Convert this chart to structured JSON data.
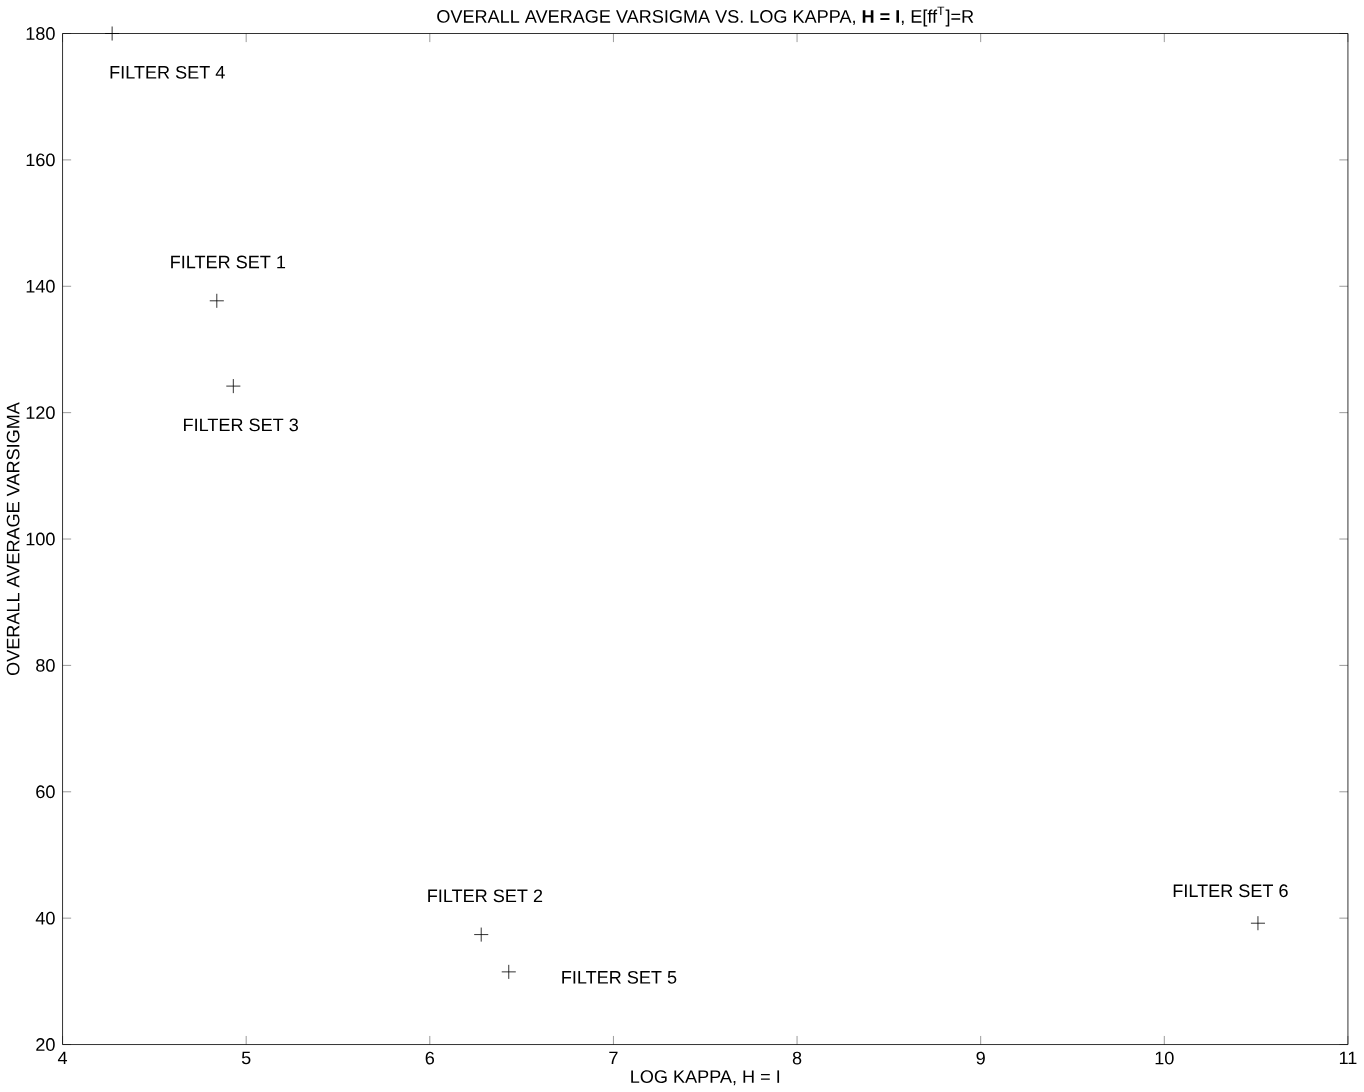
{
  "chart_data": {
    "type": "scatter",
    "title": "OVERALL AVERAGE VARSIGMA VS. LOG KAPPA, **H = I**, E[ff$^{T}$]=R",
    "xlabel": "LOG KAPPA, H = I",
    "ylabel": "OVERALL AVERAGE VARSIGMA",
    "series": [
      {
        "name": "FILTER SET 1",
        "color": "#000000",
        "x": [
          4.84
        ],
        "values": [
          137.7
        ]
      },
      {
        "name": "FILTER SET 2",
        "color": "#000000",
        "x": [
          6.28
        ],
        "values": [
          37.4
        ]
      },
      {
        "name": "FILTER SET 3",
        "color": "#000000",
        "x": [
          4.93
        ],
        "values": [
          124.2
        ]
      },
      {
        "name": "FILTER SET 4",
        "color": "#000000",
        "x": [
          4.27
        ],
        "values": [
          180
        ]
      },
      {
        "name": "FILTER SET 5",
        "color": "#000000",
        "x": [
          6.43
        ],
        "values": [
          31.5
        ]
      },
      {
        "name": "FILTER SET 6",
        "color": "#000000",
        "x": [
          10.51
        ],
        "values": [
          39.2
        ]
      }
    ],
    "marker": "cross",
    "grid": false,
    "xlim": [
      4,
      11
    ],
    "ylim": [
      20,
      180
    ],
    "xticks": [
      4,
      5,
      6,
      7,
      8,
      9,
      10,
      11
    ],
    "yticks": [
      20,
      40,
      60,
      80,
      100,
      120,
      140,
      160,
      180
    ]
  }
}
